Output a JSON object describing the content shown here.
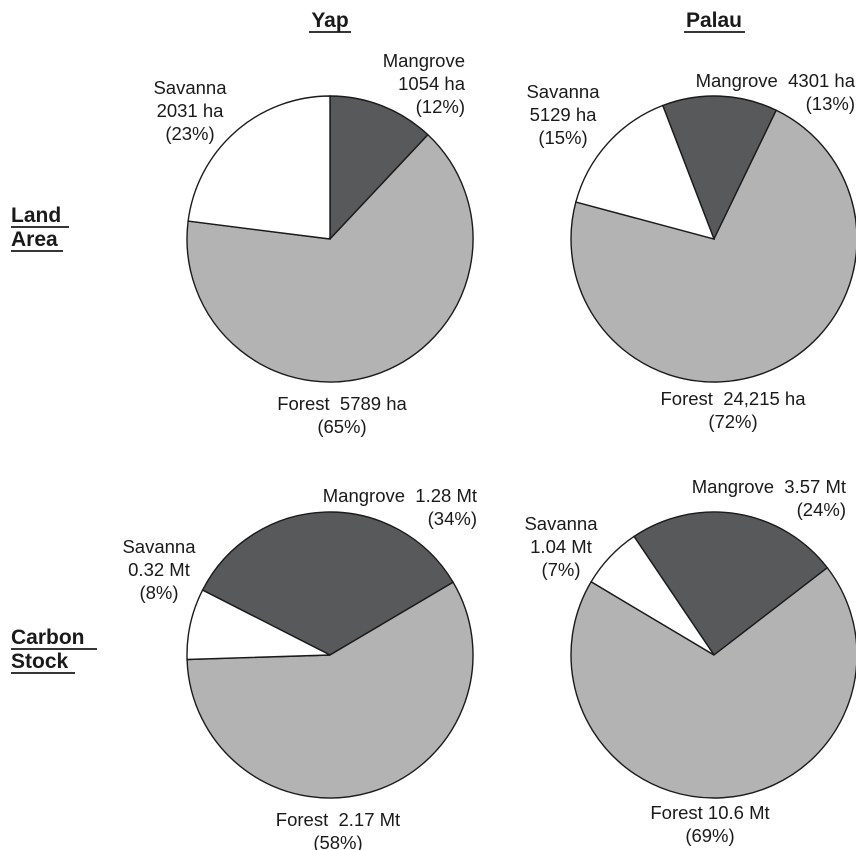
{
  "column_headers": [
    "Yap",
    "Palau"
  ],
  "row_headers": [
    {
      "line1": "Land",
      "line2": "Area"
    },
    {
      "line1": "Carbon",
      "line2": "Stock"
    }
  ],
  "colors": {
    "mangrove": "#58595b",
    "forest": "#b3b3b3",
    "savanna": "#ffffff",
    "outline": "#1a1a1a"
  },
  "chart_data": [
    {
      "type": "pie",
      "site": "Yap",
      "measure": "Land Area",
      "unit": "ha",
      "slices": [
        {
          "name": "Mangrove",
          "value": 1054,
          "percent": 12,
          "color": "#58595b"
        },
        {
          "name": "Forest",
          "value": 5789,
          "percent": 65,
          "color": "#b3b3b3"
        },
        {
          "name": "Savanna",
          "value": 2031,
          "percent": 23,
          "color": "#ffffff"
        }
      ],
      "labels": [
        {
          "slice": "Mangrove",
          "lines": [
            "Mangrove",
            "1054 ha",
            "(12%)"
          ]
        },
        {
          "slice": "Savanna",
          "lines": [
            "Savanna",
            "2031 ha",
            "(23%)"
          ]
        },
        {
          "slice": "Forest",
          "lines": [
            "Forest  5789 ha",
            "(65%)"
          ]
        }
      ]
    },
    {
      "type": "pie",
      "site": "Palau",
      "measure": "Land Area",
      "unit": "ha",
      "slices": [
        {
          "name": "Mangrove",
          "value": 4301,
          "percent": 13,
          "color": "#58595b"
        },
        {
          "name": "Forest",
          "value": 24215,
          "percent": 72,
          "color": "#b3b3b3"
        },
        {
          "name": "Savanna",
          "value": 5129,
          "percent": 15,
          "color": "#ffffff"
        }
      ],
      "labels": [
        {
          "slice": "Mangrove",
          "lines": [
            "Mangrove  4301 ha",
            "(13%)"
          ]
        },
        {
          "slice": "Savanna",
          "lines": [
            "Savanna",
            "5129 ha",
            "(15%)"
          ]
        },
        {
          "slice": "Forest",
          "lines": [
            "Forest  24,215 ha",
            "(72%)"
          ]
        }
      ]
    },
    {
      "type": "pie",
      "site": "Yap",
      "measure": "Carbon Stock",
      "unit": "Mt",
      "slices": [
        {
          "name": "Mangrove",
          "value": 1.28,
          "percent": 34,
          "color": "#58595b"
        },
        {
          "name": "Forest",
          "value": 2.17,
          "percent": 58,
          "color": "#b3b3b3"
        },
        {
          "name": "Savanna",
          "value": 0.32,
          "percent": 8,
          "color": "#ffffff"
        }
      ],
      "labels": [
        {
          "slice": "Mangrove",
          "lines": [
            "Mangrove  1.28 Mt",
            "(34%)"
          ]
        },
        {
          "slice": "Savanna",
          "lines": [
            "Savanna",
            "0.32 Mt",
            "(8%)"
          ]
        },
        {
          "slice": "Forest",
          "lines": [
            "Forest  2.17 Mt",
            "(58%)"
          ]
        }
      ]
    },
    {
      "type": "pie",
      "site": "Palau",
      "measure": "Carbon Stock",
      "unit": "Mt",
      "slices": [
        {
          "name": "Mangrove",
          "value": 3.57,
          "percent": 24,
          "color": "#58595b"
        },
        {
          "name": "Forest",
          "value": 10.6,
          "percent": 69,
          "color": "#b3b3b3"
        },
        {
          "name": "Savanna",
          "value": 1.04,
          "percent": 7,
          "color": "#ffffff"
        }
      ],
      "labels": [
        {
          "slice": "Mangrove",
          "lines": [
            "Mangrove  3.57 Mt",
            "(24%)"
          ]
        },
        {
          "slice": "Savanna",
          "lines": [
            "Savanna",
            "1.04 Mt",
            "(7%)"
          ]
        },
        {
          "slice": "Forest",
          "lines": [
            "Forest 10.6 Mt",
            "(69%)"
          ]
        }
      ]
    }
  ]
}
